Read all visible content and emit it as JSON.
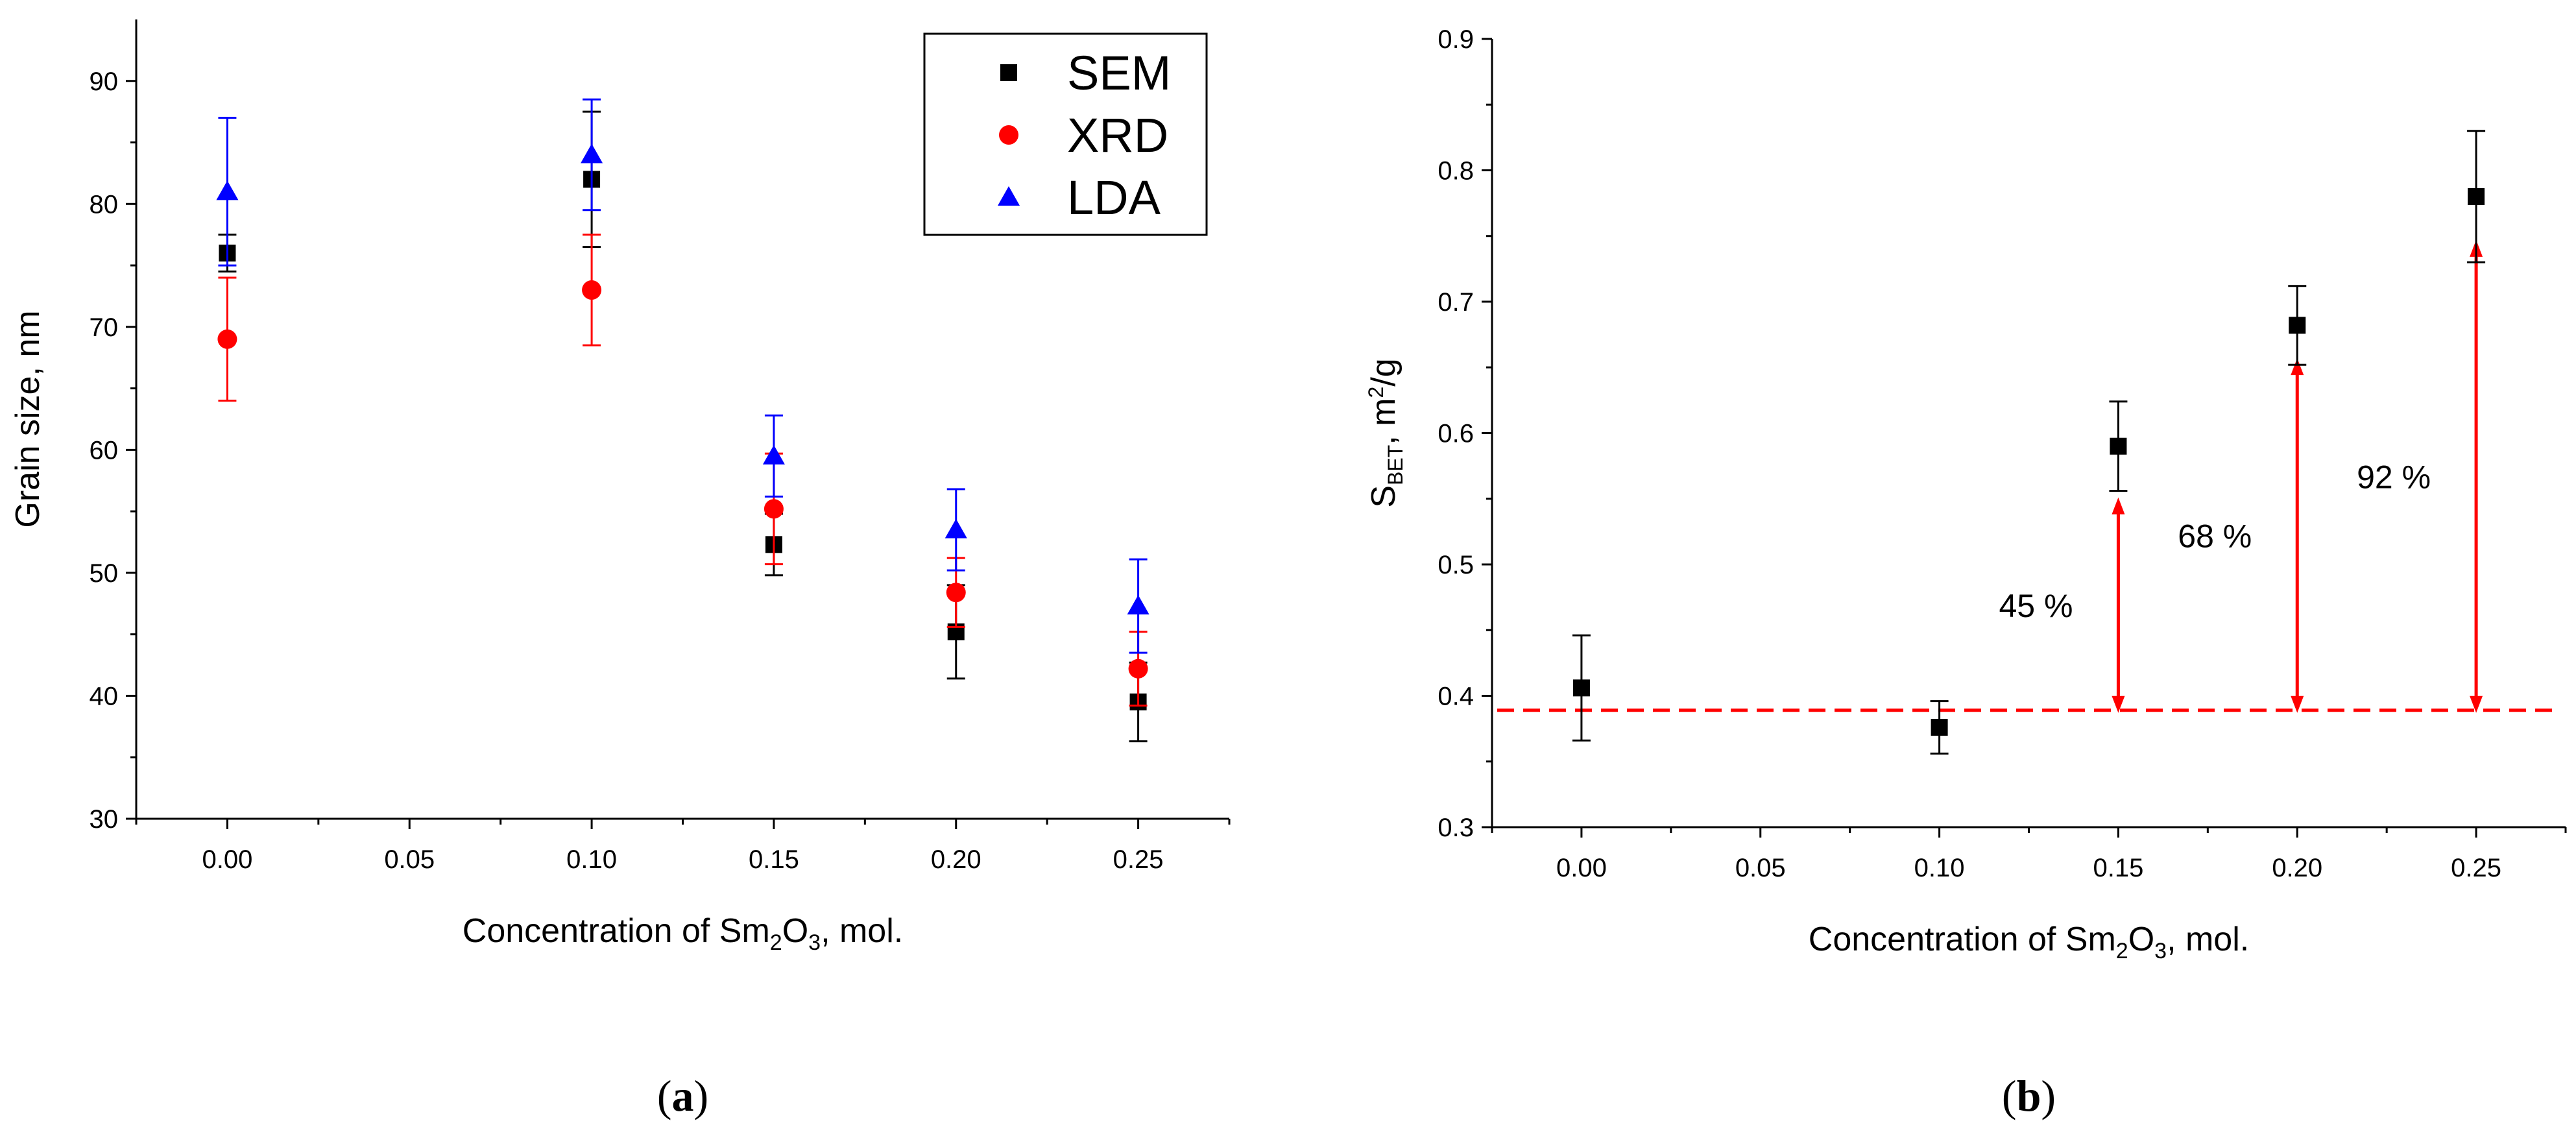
{
  "chart_data": [
    {
      "type": "scatter",
      "panel_label": "(a)",
      "panel_letter": "a",
      "xlabel_prefix": "Concentration of Sm",
      "xlabel_sub1": "2",
      "xlabel_mid": "O",
      "xlabel_sub2": "3",
      "xlabel_suffix": ", mol.",
      "ylabel": "Grain size, nm",
      "xlim": [
        -0.025,
        0.275
      ],
      "ylim": [
        30,
        95
      ],
      "xticks": [
        0.0,
        0.05,
        0.1,
        0.15,
        0.2,
        0.25
      ],
      "xtick_labels": [
        "0.00",
        "0.05",
        "0.10",
        "0.15",
        "0.20",
        "0.25"
      ],
      "yticks": [
        30,
        40,
        50,
        60,
        70,
        80,
        90
      ],
      "ytick_labels": [
        "30",
        "40",
        "50",
        "60",
        "70",
        "80",
        "90"
      ],
      "legend_position": "top-right",
      "series": [
        {
          "name": "SEM",
          "marker": "square",
          "color": "#000000",
          "x": [
            0.0,
            0.1,
            0.15,
            0.2,
            0.25
          ],
          "y": [
            76,
            82,
            52.3,
            45.2,
            39.5
          ],
          "err": [
            1.5,
            5.5,
            2.5,
            3.8,
            3.2
          ]
        },
        {
          "name": "XRD",
          "marker": "circle",
          "color": "#ff0000",
          "x": [
            0.0,
            0.1,
            0.15,
            0.2,
            0.25
          ],
          "y": [
            69,
            73,
            55.2,
            48.4,
            42.2
          ],
          "err": [
            5.0,
            4.5,
            4.5,
            2.8,
            3.0
          ]
        },
        {
          "name": "LDA",
          "marker": "triangle",
          "color": "#0000ff",
          "x": [
            0.0,
            0.1,
            0.15,
            0.2,
            0.25
          ],
          "y": [
            81,
            84,
            59.5,
            53.5,
            47.3
          ],
          "err": [
            6.0,
            4.5,
            3.3,
            3.3,
            3.8
          ]
        }
      ]
    },
    {
      "type": "scatter",
      "panel_label": "(b)",
      "panel_letter": "b",
      "xlabel_prefix": "Concentration of Sm",
      "xlabel_sub1": "2",
      "xlabel_mid": "O",
      "xlabel_sub2": "3",
      "xlabel_suffix": ", mol.",
      "ylabel_main": "S",
      "ylabel_sub": "BET",
      "ylabel_unit": ", m",
      "ylabel_sup": "2",
      "ylabel_tail": "/g",
      "xlim": [
        -0.025,
        0.275
      ],
      "ylim": [
        0.3,
        0.9
      ],
      "xticks": [
        0.0,
        0.05,
        0.1,
        0.15,
        0.2,
        0.25
      ],
      "xtick_labels": [
        "0.00",
        "0.05",
        "0.10",
        "0.15",
        "0.20",
        "0.25"
      ],
      "yticks": [
        0.3,
        0.4,
        0.5,
        0.6,
        0.7,
        0.8,
        0.9
      ],
      "ytick_labels": [
        "0.3",
        "0.4",
        "0.5",
        "0.6",
        "0.7",
        "0.8",
        "0.9"
      ],
      "series": [
        {
          "name": "S_BET",
          "marker": "square",
          "color": "#000000",
          "x": [
            0.0,
            0.1,
            0.15,
            0.2,
            0.25
          ],
          "y": [
            0.406,
            0.376,
            0.59,
            0.682,
            0.78
          ],
          "err": [
            0.04,
            0.02,
            0.034,
            0.03,
            0.05
          ]
        }
      ],
      "reference_line": {
        "y": 0.389,
        "color": "#ff0000",
        "style": "dashed"
      },
      "annotations": [
        {
          "text": "45 %",
          "x": 0.15,
          "from": 0.389,
          "to": 0.549,
          "color": "#ff0000"
        },
        {
          "text": "68 %",
          "x": 0.2,
          "from": 0.389,
          "to": 0.655,
          "color": "#ff0000"
        },
        {
          "text": "92 %",
          "x": 0.25,
          "from": 0.389,
          "to": 0.745,
          "color": "#ff0000"
        }
      ]
    }
  ]
}
